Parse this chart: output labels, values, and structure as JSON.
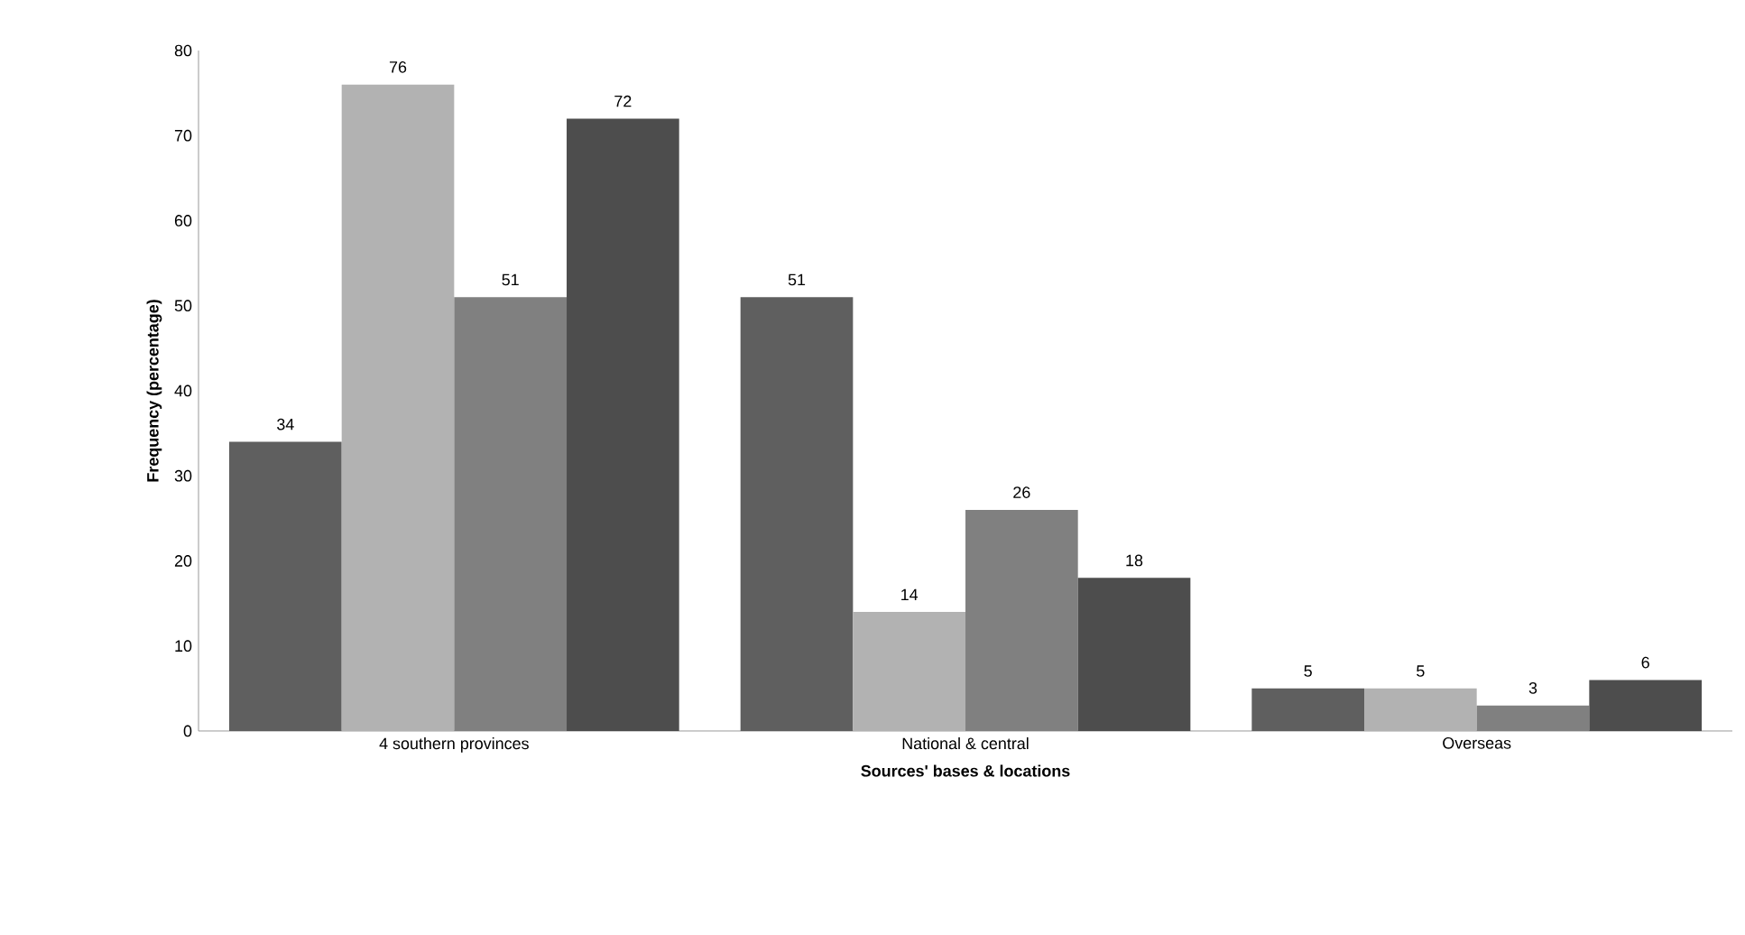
{
  "chart_data": {
    "type": "bar",
    "xlabel": "Sources' bases & locations",
    "ylabel": "Frequency (percentage)",
    "categories": [
      "4 southern provinces",
      "National & central",
      "Overseas"
    ],
    "series": [
      {
        "color": "#5f5f5f",
        "values": [
          34,
          51,
          5
        ]
      },
      {
        "color": "#b2b2b2",
        "values": [
          76,
          14,
          5
        ]
      },
      {
        "color": "#808080",
        "values": [
          51,
          26,
          3
        ]
      },
      {
        "color": "#4d4d4d",
        "values": [
          72,
          18,
          6
        ]
      }
    ],
    "ylim": [
      0,
      80
    ],
    "yticks": [
      0,
      10,
      20,
      30,
      40,
      50,
      60,
      70,
      80
    ],
    "data_labels": true,
    "grid": false
  }
}
